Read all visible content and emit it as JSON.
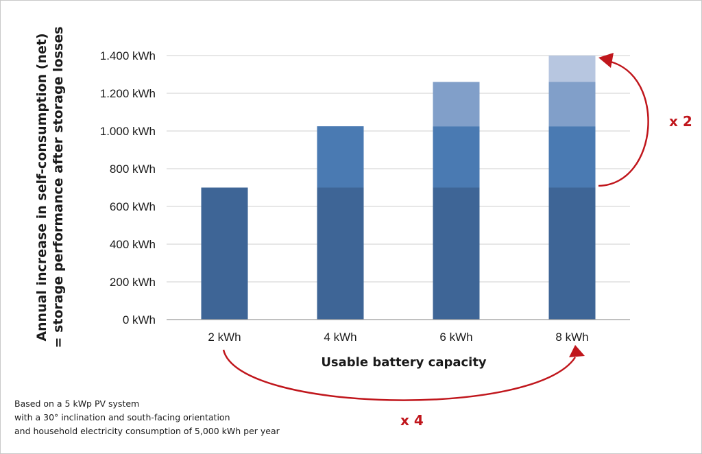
{
  "chart_data": {
    "type": "bar",
    "stacked": true,
    "categories": [
      "2 kWh",
      "4 kWh",
      "6 kWh",
      "8 kWh"
    ],
    "series": [
      {
        "values": [
          700,
          700,
          700,
          700
        ],
        "color": "#3e6596"
      },
      {
        "values": [
          0,
          325,
          325,
          325
        ],
        "color": "#4a7ab2"
      },
      {
        "values": [
          0,
          0,
          235,
          235
        ],
        "color": "#819fc9"
      },
      {
        "values": [
          0,
          0,
          0,
          140
        ],
        "color": "#b7c6e0"
      }
    ],
    "y_ticks": [
      {
        "value": 0,
        "label": "0 kWh"
      },
      {
        "value": 200,
        "label": "200 kWh"
      },
      {
        "value": 400,
        "label": "400 kWh"
      },
      {
        "value": 600,
        "label": "600 kWh"
      },
      {
        "value": 800,
        "label": "800 kWh"
      },
      {
        "value": 1000,
        "label": "1.000 kWh"
      },
      {
        "value": 1200,
        "label": "1.200 kWh"
      },
      {
        "value": 1400,
        "label": "1.400 kWh"
      }
    ],
    "ylim": [
      0,
      1400
    ],
    "grid": true,
    "xlabel": "Usable battery capacity",
    "ylabel_line1": "Annual increase in self-consumption (net)",
    "ylabel_line2": "= storage performance after storage losses",
    "annotations": {
      "x2": "x 2",
      "x4": "x 4",
      "color": "#c0161c"
    }
  },
  "footnote": {
    "line1": "Based on a 5 kWp PV system",
    "line2": "with a 30° inclination and south-facing orientation",
    "line3": "and household electricity consumption of 5,000 kWh per year"
  }
}
